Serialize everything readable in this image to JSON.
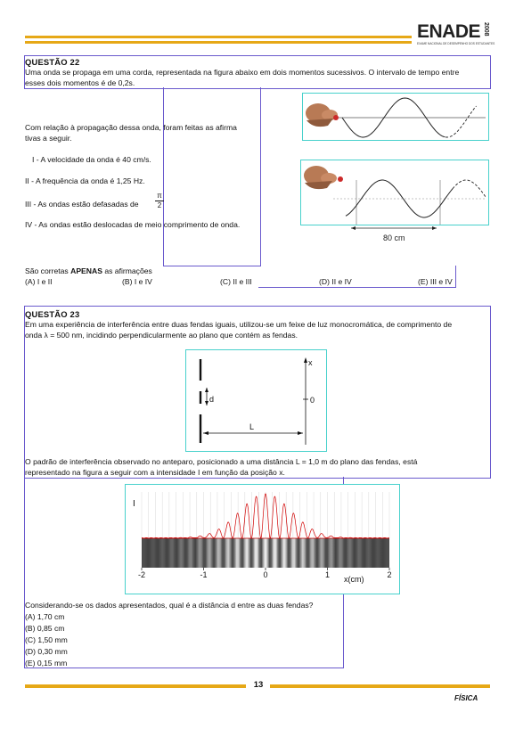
{
  "header": {
    "logo": "ENADE",
    "year": "2008",
    "subtitle": "EXAME NACIONAL DE DESEMPENHO DOS ESTUDANTES"
  },
  "q22": {
    "title": "QUESTÃO 22",
    "intro": [
      "Uma onda se propaga em uma corda, representada na figura abaixo em dois momentos sucessivos. O intervalo de tempo entre",
      "esses dois momentos é de 0,2s."
    ],
    "relation": [
      "Com relação à propagação dessa onda, foram feitas as afirma",
      "tivas a seguir."
    ],
    "statements": [
      "I  -  A velocidade da onda é 40 cm/s.",
      "II  -  A frequência da onda é 1,25 Hz.",
      "III -  As ondas estão defasadas de",
      "IV -  As ondas estão deslocadas de meio comprimento de onda."
    ],
    "fraction_num": "π",
    "fraction_den": "2",
    "prompt_prefix": "São corretas ",
    "prompt_bold": "APENAS",
    "prompt_suffix": " as afirmações",
    "options": [
      "(A)  I e II",
      "(B)  I e IV",
      "(C)  II e III",
      "(D)  II e IV",
      "(E)  III e IV"
    ],
    "figure_label": "80 cm"
  },
  "q23": {
    "title": "QUESTÃO 23",
    "intro": [
      "Em uma experiência de interferência entre duas fendas iguais, utilizou-se um feixe de luz monocromática, de comprimento de",
      "onda λ = 500 nm, incidindo perpendicularmente ao plano que contém as fendas."
    ],
    "diagram_labels": {
      "x": "x",
      "d": "d",
      "zero": "0",
      "L": "L"
    },
    "pattern_text": [
      "O padrão de interferência observado no anteparo, posicionado a uma distância L = 1,0 m do plano das fendas, está",
      "representado na figura a seguir com a intensidade I em função da posição x."
    ],
    "question": "Considerando-se os dados apresentados, qual é a distância d entre as duas fendas?",
    "options": [
      "(A)  1,70 cm",
      "(B)  0,85 cm",
      "(C)  1,50 mm",
      "(D)  0,30 mm",
      "(E)  0,15 mm"
    ]
  },
  "chart_data": {
    "type": "line",
    "ylabel": "I",
    "xlabel": "x(cm)",
    "xlim": [
      -2,
      2
    ],
    "x_ticks": [
      "-2",
      "-1",
      "0",
      "1",
      "2"
    ],
    "grid": true
  },
  "footer": {
    "page_number": "13",
    "subject": "FÍSICA"
  }
}
